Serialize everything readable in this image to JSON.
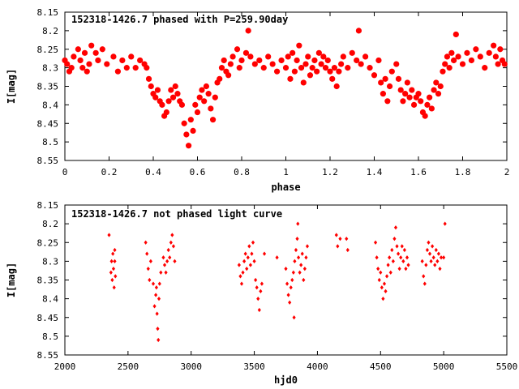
{
  "chart_data": [
    {
      "type": "scatter",
      "title": "152318-1426.7 phased with P=259.90day",
      "xlabel": "phase",
      "ylabel": "I[mag]",
      "xlim": [
        0,
        2
      ],
      "ylim": [
        8.55,
        8.15
      ],
      "y_inverted": true,
      "grid": false,
      "marker_color": "#ff0000",
      "marker": "filled-star",
      "xticks": [
        "0",
        "0.2",
        "0.4",
        "0.6",
        "0.8",
        "1",
        "1.2",
        "1.4",
        "1.6",
        "1.8",
        "2"
      ],
      "yticks": [
        "8.15",
        "8.2",
        "8.25",
        "8.3",
        "8.35",
        "8.4",
        "8.45",
        "8.5",
        "8.55"
      ],
      "points": [
        [
          0.0,
          8.28
        ],
        [
          0.01,
          8.29
        ],
        [
          0.02,
          8.31
        ],
        [
          0.03,
          8.3
        ],
        [
          0.04,
          8.27
        ],
        [
          0.06,
          8.25
        ],
        [
          0.07,
          8.28
        ],
        [
          0.08,
          8.3
        ],
        [
          0.09,
          8.26
        ],
        [
          0.1,
          8.31
        ],
        [
          0.11,
          8.29
        ],
        [
          0.12,
          8.24
        ],
        [
          0.14,
          8.26
        ],
        [
          0.15,
          8.28
        ],
        [
          0.17,
          8.25
        ],
        [
          0.19,
          8.29
        ],
        [
          0.22,
          8.27
        ],
        [
          0.24,
          8.31
        ],
        [
          0.26,
          8.28
        ],
        [
          0.28,
          8.3
        ],
        [
          0.3,
          8.27
        ],
        [
          0.32,
          8.3
        ],
        [
          0.34,
          8.28
        ],
        [
          0.36,
          8.29
        ],
        [
          0.37,
          8.3
        ],
        [
          0.38,
          8.33
        ],
        [
          0.39,
          8.35
        ],
        [
          0.4,
          8.37
        ],
        [
          0.41,
          8.38
        ],
        [
          0.42,
          8.36
        ],
        [
          0.43,
          8.39
        ],
        [
          0.44,
          8.4
        ],
        [
          0.45,
          8.43
        ],
        [
          0.46,
          8.42
        ],
        [
          0.47,
          8.39
        ],
        [
          0.48,
          8.36
        ],
        [
          0.49,
          8.38
        ],
        [
          0.5,
          8.35
        ],
        [
          0.51,
          8.37
        ],
        [
          0.52,
          8.39
        ],
        [
          0.53,
          8.4
        ],
        [
          0.54,
          8.45
        ],
        [
          0.55,
          8.48
        ],
        [
          0.56,
          8.51
        ],
        [
          0.57,
          8.44
        ],
        [
          0.58,
          8.47
        ],
        [
          0.59,
          8.4
        ],
        [
          0.6,
          8.42
        ],
        [
          0.61,
          8.38
        ],
        [
          0.62,
          8.36
        ],
        [
          0.63,
          8.39
        ],
        [
          0.64,
          8.35
        ],
        [
          0.65,
          8.37
        ],
        [
          0.66,
          8.41
        ],
        [
          0.67,
          8.44
        ],
        [
          0.68,
          8.38
        ],
        [
          0.69,
          8.34
        ],
        [
          0.7,
          8.33
        ],
        [
          0.71,
          8.3
        ],
        [
          0.72,
          8.28
        ],
        [
          0.73,
          8.31
        ],
        [
          0.74,
          8.32
        ],
        [
          0.75,
          8.29
        ],
        [
          0.76,
          8.27
        ],
        [
          0.78,
          8.25
        ],
        [
          0.79,
          8.3
        ],
        [
          0.8,
          8.28
        ],
        [
          0.82,
          8.26
        ],
        [
          0.83,
          8.2
        ],
        [
          0.84,
          8.27
        ],
        [
          0.86,
          8.29
        ],
        [
          0.88,
          8.28
        ],
        [
          0.9,
          8.3
        ],
        [
          0.92,
          8.27
        ],
        [
          0.94,
          8.29
        ],
        [
          0.96,
          8.31
        ],
        [
          0.98,
          8.28
        ],
        [
          1.0,
          8.3
        ],
        [
          1.01,
          8.27
        ],
        [
          1.02,
          8.33
        ],
        [
          1.03,
          8.26
        ],
        [
          1.04,
          8.31
        ],
        [
          1.05,
          8.28
        ],
        [
          1.06,
          8.24
        ],
        [
          1.07,
          8.3
        ],
        [
          1.08,
          8.34
        ],
        [
          1.09,
          8.29
        ],
        [
          1.1,
          8.27
        ],
        [
          1.11,
          8.32
        ],
        [
          1.12,
          8.3
        ],
        [
          1.13,
          8.28
        ],
        [
          1.14,
          8.31
        ],
        [
          1.15,
          8.26
        ],
        [
          1.16,
          8.29
        ],
        [
          1.17,
          8.27
        ],
        [
          1.18,
          8.3
        ],
        [
          1.19,
          8.28
        ],
        [
          1.2,
          8.31
        ],
        [
          1.21,
          8.33
        ],
        [
          1.22,
          8.3
        ],
        [
          1.23,
          8.35
        ],
        [
          1.24,
          8.31
        ],
        [
          1.25,
          8.29
        ],
        [
          1.26,
          8.27
        ],
        [
          1.28,
          8.3
        ],
        [
          1.3,
          8.26
        ],
        [
          1.32,
          8.28
        ],
        [
          1.33,
          8.2
        ],
        [
          1.34,
          8.29
        ],
        [
          1.36,
          8.27
        ],
        [
          1.38,
          8.3
        ],
        [
          1.4,
          8.32
        ],
        [
          1.42,
          8.28
        ],
        [
          1.43,
          8.34
        ],
        [
          1.44,
          8.37
        ],
        [
          1.45,
          8.33
        ],
        [
          1.46,
          8.39
        ],
        [
          1.47,
          8.35
        ],
        [
          1.48,
          8.31
        ],
        [
          1.5,
          8.29
        ],
        [
          1.51,
          8.33
        ],
        [
          1.52,
          8.36
        ],
        [
          1.53,
          8.39
        ],
        [
          1.54,
          8.37
        ],
        [
          1.55,
          8.34
        ],
        [
          1.56,
          8.38
        ],
        [
          1.57,
          8.36
        ],
        [
          1.58,
          8.4
        ],
        [
          1.59,
          8.38
        ],
        [
          1.6,
          8.37
        ],
        [
          1.61,
          8.39
        ],
        [
          1.62,
          8.42
        ],
        [
          1.63,
          8.43
        ],
        [
          1.64,
          8.4
        ],
        [
          1.65,
          8.38
        ],
        [
          1.66,
          8.41
        ],
        [
          1.67,
          8.36
        ],
        [
          1.68,
          8.34
        ],
        [
          1.69,
          8.37
        ],
        [
          1.7,
          8.35
        ],
        [
          1.71,
          8.31
        ],
        [
          1.72,
          8.29
        ],
        [
          1.73,
          8.27
        ],
        [
          1.74,
          8.3
        ],
        [
          1.75,
          8.26
        ],
        [
          1.76,
          8.28
        ],
        [
          1.77,
          8.21
        ],
        [
          1.78,
          8.27
        ],
        [
          1.8,
          8.29
        ],
        [
          1.82,
          8.26
        ],
        [
          1.84,
          8.28
        ],
        [
          1.86,
          8.25
        ],
        [
          1.88,
          8.27
        ],
        [
          1.9,
          8.3
        ],
        [
          1.92,
          8.26
        ],
        [
          1.94,
          8.24
        ],
        [
          1.95,
          8.27
        ],
        [
          1.96,
          8.29
        ],
        [
          1.97,
          8.25
        ],
        [
          1.98,
          8.28
        ],
        [
          1.99,
          8.29
        ]
      ]
    },
    {
      "type": "scatter",
      "title": "152318-1426.7 not phased light curve",
      "xlabel": "hjd0",
      "ylabel": "I[mag]",
      "xlim": [
        2000,
        5500
      ],
      "ylim": [
        8.55,
        8.15
      ],
      "y_inverted": true,
      "grid": false,
      "marker_color": "#ff0000",
      "marker": "filled-diamond",
      "xticks": [
        "2000",
        "2500",
        "3000",
        "3500",
        "4000",
        "4500",
        "5000",
        "5500"
      ],
      "yticks": [
        "8.15",
        "8.2",
        "8.25",
        "8.3",
        "8.35",
        "8.4",
        "8.45",
        "8.5",
        "8.55"
      ],
      "points": [
        [
          2350,
          8.23
        ],
        [
          2365,
          8.33
        ],
        [
          2370,
          8.3
        ],
        [
          2375,
          8.35
        ],
        [
          2380,
          8.28
        ],
        [
          2385,
          8.32
        ],
        [
          2390,
          8.37
        ],
        [
          2395,
          8.3
        ],
        [
          2400,
          8.34
        ],
        [
          2395,
          8.27
        ],
        [
          2640,
          8.25
        ],
        [
          2650,
          8.28
        ],
        [
          2660,
          8.32
        ],
        [
          2670,
          8.35
        ],
        [
          2680,
          8.3
        ],
        [
          2700,
          8.36
        ],
        [
          2710,
          8.42
        ],
        [
          2720,
          8.39
        ],
        [
          2725,
          8.37
        ],
        [
          2730,
          8.44
        ],
        [
          2735,
          8.48
        ],
        [
          2740,
          8.51
        ],
        [
          2745,
          8.4
        ],
        [
          2750,
          8.36
        ],
        [
          2760,
          8.33
        ],
        [
          2780,
          8.29
        ],
        [
          2790,
          8.31
        ],
        [
          2800,
          8.33
        ],
        [
          2810,
          8.3
        ],
        [
          2820,
          8.27
        ],
        [
          2830,
          8.29
        ],
        [
          2840,
          8.25
        ],
        [
          2850,
          8.23
        ],
        [
          2860,
          8.26
        ],
        [
          2870,
          8.3
        ],
        [
          3380,
          8.31
        ],
        [
          3390,
          8.34
        ],
        [
          3400,
          8.36
        ],
        [
          3410,
          8.33
        ],
        [
          3420,
          8.3
        ],
        [
          3430,
          8.28
        ],
        [
          3440,
          8.32
        ],
        [
          3450,
          8.29
        ],
        [
          3460,
          8.26
        ],
        [
          3470,
          8.31
        ],
        [
          3480,
          8.28
        ],
        [
          3490,
          8.25
        ],
        [
          3500,
          8.3
        ],
        [
          3510,
          8.35
        ],
        [
          3520,
          8.37
        ],
        [
          3530,
          8.4
        ],
        [
          3540,
          8.43
        ],
        [
          3550,
          8.38
        ],
        [
          3560,
          8.36
        ],
        [
          3580,
          8.28
        ],
        [
          3680,
          8.29
        ],
        [
          3750,
          8.32
        ],
        [
          3760,
          8.36
        ],
        [
          3770,
          8.39
        ],
        [
          3780,
          8.41
        ],
        [
          3790,
          8.37
        ],
        [
          3800,
          8.35
        ],
        [
          3810,
          8.33
        ],
        [
          3815,
          8.45
        ],
        [
          3820,
          8.3
        ],
        [
          3830,
          8.27
        ],
        [
          3840,
          8.24
        ],
        [
          3845,
          8.2
        ],
        [
          3850,
          8.29
        ],
        [
          3860,
          8.33
        ],
        [
          3870,
          8.31
        ],
        [
          3880,
          8.28
        ],
        [
          3890,
          8.35
        ],
        [
          3900,
          8.32
        ],
        [
          3910,
          8.29
        ],
        [
          3920,
          8.26
        ],
        [
          4150,
          8.23
        ],
        [
          4160,
          8.26
        ],
        [
          4180,
          8.24
        ],
        [
          4230,
          8.24
        ],
        [
          4240,
          8.27
        ],
        [
          4460,
          8.25
        ],
        [
          4470,
          8.29
        ],
        [
          4480,
          8.32
        ],
        [
          4490,
          8.35
        ],
        [
          4500,
          8.33
        ],
        [
          4510,
          8.37
        ],
        [
          4520,
          8.4
        ],
        [
          4530,
          8.36
        ],
        [
          4540,
          8.38
        ],
        [
          4550,
          8.34
        ],
        [
          4560,
          8.31
        ],
        [
          4570,
          8.29
        ],
        [
          4580,
          8.33
        ],
        [
          4590,
          8.27
        ],
        [
          4600,
          8.3
        ],
        [
          4610,
          8.24
        ],
        [
          4620,
          8.21
        ],
        [
          4630,
          8.26
        ],
        [
          4640,
          8.28
        ],
        [
          4650,
          8.32
        ],
        [
          4660,
          8.29
        ],
        [
          4670,
          8.26
        ],
        [
          4680,
          8.3
        ],
        [
          4690,
          8.27
        ],
        [
          4700,
          8.32
        ],
        [
          4710,
          8.29
        ],
        [
          4720,
          8.31
        ],
        [
          4830,
          8.3
        ],
        [
          4840,
          8.34
        ],
        [
          4850,
          8.36
        ],
        [
          4860,
          8.31
        ],
        [
          4870,
          8.27
        ],
        [
          4880,
          8.25
        ],
        [
          4890,
          8.28
        ],
        [
          4900,
          8.3
        ],
        [
          4910,
          8.26
        ],
        [
          4920,
          8.29
        ],
        [
          4930,
          8.31
        ],
        [
          4940,
          8.27
        ],
        [
          4950,
          8.3
        ],
        [
          4960,
          8.28
        ],
        [
          4970,
          8.32
        ],
        [
          4980,
          8.29
        ],
        [
          5000,
          8.29
        ],
        [
          5010,
          8.2
        ]
      ]
    }
  ]
}
